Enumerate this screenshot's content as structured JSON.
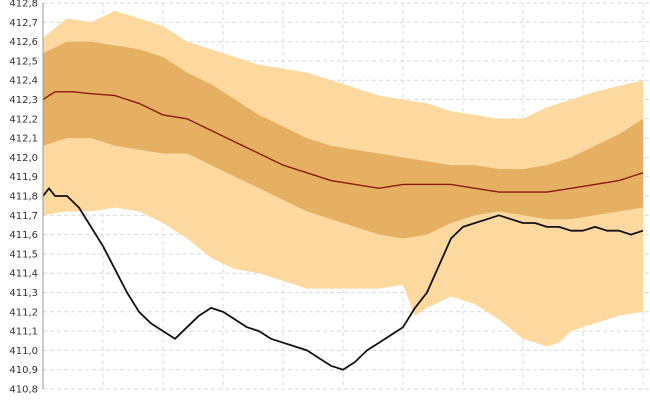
{
  "chart_data": {
    "type": "area",
    "title": "",
    "xlabel": "",
    "ylabel": "",
    "ylim": [
      410.8,
      412.8
    ],
    "y_ticks": [
      "410,8",
      "410,9",
      "411,0",
      "411,1",
      "411,2",
      "411,3",
      "411,4",
      "411,5",
      "411,6",
      "411,7",
      "411,8",
      "411,9",
      "412,0",
      "412,1",
      "412,2",
      "412,3",
      "412,4",
      "412,5",
      "412,6",
      "412,7",
      "412,8"
    ],
    "y_tick_values": [
      410.8,
      410.9,
      411.0,
      411.1,
      411.2,
      411.3,
      411.4,
      411.5,
      411.6,
      411.7,
      411.8,
      411.9,
      412.0,
      412.1,
      412.2,
      412.3,
      412.4,
      412.5,
      412.6,
      412.7,
      412.8
    ],
    "xlim": [
      0,
      100
    ],
    "grid": true,
    "colors": {
      "outer_band": "#fdd9a0",
      "inner_band": "#e6b062",
      "median": "#8b1a0e",
      "observed": "#111111"
    },
    "series": [
      {
        "kind": "outer_upper",
        "x": [
          0,
          4,
          8,
          12,
          16,
          20,
          24,
          28,
          32,
          36,
          40,
          44,
          48,
          52,
          56,
          60,
          64,
          68,
          72,
          76,
          80,
          84,
          88,
          92,
          96,
          100
        ],
        "values": [
          412.62,
          412.72,
          412.7,
          412.76,
          412.72,
          412.68,
          412.6,
          412.56,
          412.52,
          412.48,
          412.46,
          412.44,
          412.4,
          412.36,
          412.32,
          412.3,
          412.28,
          412.24,
          412.22,
          412.2,
          412.2,
          412.26,
          412.3,
          412.34,
          412.37,
          412.4
        ]
      },
      {
        "kind": "inner_upper",
        "x": [
          0,
          4,
          8,
          12,
          16,
          20,
          24,
          28,
          32,
          36,
          40,
          44,
          48,
          52,
          56,
          60,
          64,
          68,
          72,
          76,
          80,
          84,
          88,
          92,
          96,
          100
        ],
        "values": [
          412.54,
          412.6,
          412.6,
          412.58,
          412.56,
          412.52,
          412.44,
          412.38,
          412.3,
          412.22,
          412.16,
          412.1,
          412.06,
          412.04,
          412.02,
          412.0,
          411.98,
          411.96,
          411.96,
          411.94,
          411.94,
          411.96,
          412.0,
          412.06,
          412.12,
          412.2
        ]
      },
      {
        "kind": "median",
        "x": [
          0,
          2,
          5,
          8,
          12,
          16,
          20,
          24,
          28,
          32,
          36,
          40,
          44,
          48,
          52,
          56,
          60,
          64,
          68,
          72,
          76,
          80,
          84,
          88,
          92,
          96,
          100
        ],
        "values": [
          412.3,
          412.34,
          412.34,
          412.33,
          412.32,
          412.28,
          412.22,
          412.2,
          412.14,
          412.08,
          412.02,
          411.96,
          411.92,
          411.88,
          411.86,
          411.84,
          411.86,
          411.86,
          411.86,
          411.84,
          411.82,
          411.82,
          411.82,
          411.84,
          411.86,
          411.88,
          411.92
        ]
      },
      {
        "kind": "inner_lower",
        "x": [
          0,
          4,
          8,
          12,
          16,
          20,
          24,
          28,
          32,
          36,
          40,
          44,
          48,
          52,
          56,
          60,
          64,
          68,
          72,
          76,
          80,
          84,
          88,
          92,
          96,
          100
        ],
        "values": [
          412.06,
          412.1,
          412.1,
          412.06,
          412.04,
          412.02,
          412.02,
          411.96,
          411.9,
          411.84,
          411.78,
          411.72,
          411.68,
          411.64,
          411.6,
          411.58,
          411.6,
          411.66,
          411.7,
          411.72,
          411.7,
          411.68,
          411.68,
          411.7,
          411.72,
          411.74
        ]
      },
      {
        "kind": "outer_lower",
        "x": [
          0,
          4,
          8,
          12,
          16,
          20,
          24,
          28,
          32,
          36,
          40,
          44,
          48,
          52,
          56,
          60,
          62,
          64,
          68,
          72,
          76,
          80,
          84,
          86,
          88,
          92,
          96,
          100
        ],
        "values": [
          411.7,
          411.72,
          411.72,
          411.74,
          411.72,
          411.66,
          411.58,
          411.48,
          411.42,
          411.4,
          411.36,
          411.32,
          411.32,
          411.32,
          411.32,
          411.34,
          411.18,
          411.22,
          411.28,
          411.24,
          411.16,
          411.06,
          411.02,
          411.04,
          411.1,
          411.14,
          411.18,
          411.2
        ]
      },
      {
        "kind": "observed",
        "x": [
          0,
          1,
          2,
          4,
          6,
          8,
          10,
          12,
          14,
          16,
          18,
          20,
          22,
          24,
          26,
          28,
          30,
          32,
          34,
          36,
          38,
          40,
          42,
          44,
          46,
          48,
          50,
          52,
          54,
          56,
          58,
          60,
          62,
          64,
          66,
          68,
          70,
          72,
          74,
          76,
          78,
          80,
          82,
          84,
          86,
          88,
          90,
          92,
          94,
          96,
          98,
          100
        ],
        "values": [
          411.8,
          411.84,
          411.8,
          411.8,
          411.74,
          411.64,
          411.54,
          411.42,
          411.3,
          411.2,
          411.14,
          411.1,
          411.06,
          411.12,
          411.18,
          411.22,
          411.2,
          411.16,
          411.12,
          411.1,
          411.06,
          411.04,
          411.02,
          411.0,
          410.96,
          410.92,
          410.9,
          410.94,
          411.0,
          411.04,
          411.08,
          411.12,
          411.22,
          411.3,
          411.44,
          411.58,
          411.64,
          411.66,
          411.68,
          411.7,
          411.68,
          411.66,
          411.66,
          411.64,
          411.64,
          411.62,
          411.62,
          411.64,
          411.62,
          411.62,
          411.6,
          411.62
        ]
      }
    ]
  }
}
